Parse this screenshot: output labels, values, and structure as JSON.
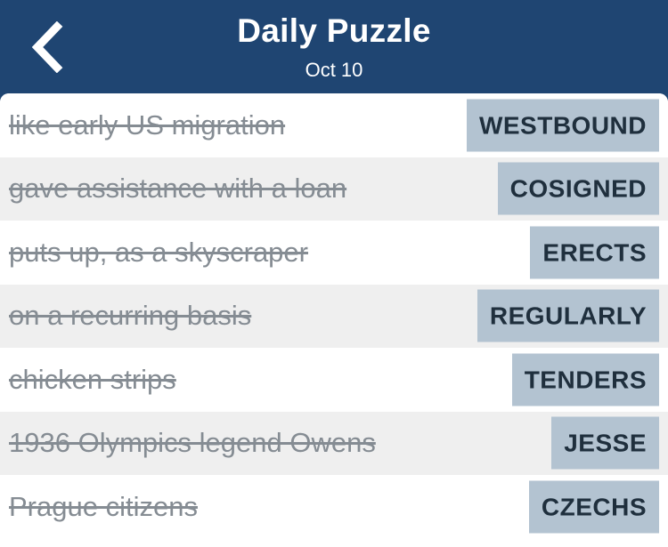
{
  "header": {
    "title": "Daily Puzzle",
    "date": "Oct 10",
    "back_icon": "chevron-left-icon"
  },
  "colors": {
    "header_bg": "#1f4572",
    "answer_bg": "#b3c3d1",
    "answer_text": "#1f2f3d",
    "clue_text": "#858c93",
    "row_shade": "#efefef"
  },
  "clues": [
    {
      "clue": "like early US migration",
      "answer": "WESTBOUND"
    },
    {
      "clue": "gave assistance with a loan",
      "answer": "COSIGNED"
    },
    {
      "clue": "puts up, as a skyscraper",
      "answer": "ERECTS"
    },
    {
      "clue": "on a recurring basis",
      "answer": "REGULARLY"
    },
    {
      "clue": "chicken strips",
      "answer": "TENDERS"
    },
    {
      "clue": "1936 Olympics legend Owens",
      "answer": "JESSE"
    },
    {
      "clue": "Prague citizens",
      "answer": "CZECHS"
    }
  ]
}
